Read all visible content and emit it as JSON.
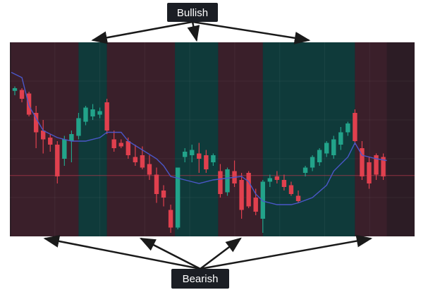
{
  "chart_data": {
    "type": "candlestick",
    "title": "",
    "xlabel": "",
    "ylabel": "",
    "grid": true,
    "ylim": [
      0,
      100
    ],
    "colors": {
      "bullish_zone": "#0f3a3a",
      "bearish_zone": "#3a1f2a",
      "up_candle": "#22a38a",
      "down_candle": "#e0404e",
      "moving_average": "#4a57c8",
      "reference_line": "#b83a4e",
      "annotation_box": "#1b1e24",
      "arrow": "#1a1a1a"
    },
    "zones": [
      {
        "regime": "bearish",
        "x_start": -0.5,
        "x_end": 9
      },
      {
        "regime": "bullish",
        "x_start": 9,
        "x_end": 13
      },
      {
        "regime": "bearish",
        "x_start": 13,
        "x_end": 22.6
      },
      {
        "regime": "bullish",
        "x_start": 22.6,
        "x_end": 28.7
      },
      {
        "regime": "bearish",
        "x_start": 28.7,
        "x_end": 35
      },
      {
        "regime": "bullish",
        "x_start": 35,
        "x_end": 48
      },
      {
        "regime": "bearish",
        "x_start": 48,
        "x_end": 52.5
      }
    ],
    "reference_line_y": 32.5,
    "annotations": [
      {
        "text": "Bullish",
        "points_to_zones": [
          1,
          3,
          5
        ]
      },
      {
        "text": "Bearish",
        "points_to_zones": [
          0,
          2,
          4,
          6
        ]
      }
    ],
    "candles": [
      {
        "x": 0,
        "open": 80.5,
        "high": 83,
        "low": 78,
        "close": 82
      },
      {
        "x": 1,
        "open": 81,
        "high": 82,
        "low": 74,
        "close": 76
      },
      {
        "x": 2,
        "open": 79,
        "high": 80,
        "low": 66,
        "close": 67
      },
      {
        "x": 3,
        "open": 68,
        "high": 72,
        "low": 48,
        "close": 57
      },
      {
        "x": 4,
        "open": 58,
        "high": 64,
        "low": 45,
        "close": 53
      },
      {
        "x": 5,
        "open": 54,
        "high": 56,
        "low": 46,
        "close": 50
      },
      {
        "x": 6,
        "open": 50,
        "high": 52,
        "low": 28,
        "close": 32
      },
      {
        "x": 7,
        "open": 42,
        "high": 55,
        "low": 38,
        "close": 53
      },
      {
        "x": 8,
        "open": 52,
        "high": 58,
        "low": 40,
        "close": 56
      },
      {
        "x": 9,
        "open": 55,
        "high": 68,
        "low": 53,
        "close": 65
      },
      {
        "x": 10,
        "open": 63,
        "high": 72,
        "low": 61,
        "close": 71
      },
      {
        "x": 11,
        "open": 66,
        "high": 73,
        "low": 64,
        "close": 70
      },
      {
        "x": 12,
        "open": 67,
        "high": 71,
        "low": 65,
        "close": 69
      },
      {
        "x": 13,
        "open": 74,
        "high": 76,
        "low": 56,
        "close": 58
      },
      {
        "x": 14,
        "open": 53,
        "high": 58,
        "low": 46,
        "close": 48
      },
      {
        "x": 15,
        "open": 51,
        "high": 53,
        "low": 48,
        "close": 49
      },
      {
        "x": 16,
        "open": 52,
        "high": 54,
        "low": 42,
        "close": 44
      },
      {
        "x": 17,
        "open": 43,
        "high": 50,
        "low": 38,
        "close": 40
      },
      {
        "x": 18,
        "open": 44,
        "high": 49,
        "low": 36,
        "close": 37
      },
      {
        "x": 19,
        "open": 39,
        "high": 44,
        "low": 30,
        "close": 33
      },
      {
        "x": 20,
        "open": 33,
        "high": 37,
        "low": 17,
        "close": 22
      },
      {
        "x": 21,
        "open": 24,
        "high": 27,
        "low": 15,
        "close": 20
      },
      {
        "x": 22,
        "open": 13,
        "high": 16,
        "low": 0,
        "close": 3
      },
      {
        "x": 23,
        "open": 3,
        "high": 37,
        "low": 2,
        "close": 37
      },
      {
        "x": 24,
        "open": 43,
        "high": 48,
        "low": 40,
        "close": 46
      },
      {
        "x": 25,
        "open": 44,
        "high": 50,
        "low": 40,
        "close": 47
      },
      {
        "x": 26,
        "open": 45,
        "high": 51,
        "low": 34,
        "close": 42
      },
      {
        "x": 27,
        "open": 44,
        "high": 47,
        "low": 34,
        "close": 36
      },
      {
        "x": 28,
        "open": 40,
        "high": 45,
        "low": 38,
        "close": 44
      },
      {
        "x": 29,
        "open": 35,
        "high": 39,
        "low": 20,
        "close": 22
      },
      {
        "x": 30,
        "open": 23,
        "high": 37,
        "low": 21,
        "close": 36
      },
      {
        "x": 31,
        "open": 35,
        "high": 41,
        "low": 26,
        "close": 28
      },
      {
        "x": 32,
        "open": 30,
        "high": 34,
        "low": 8,
        "close": 13
      },
      {
        "x": 33,
        "open": 34,
        "high": 35,
        "low": 14,
        "close": 15
      },
      {
        "x": 34,
        "open": 20,
        "high": 25,
        "low": 10,
        "close": 12
      },
      {
        "x": 35,
        "open": 8,
        "high": 30,
        "low": 0,
        "close": 29
      },
      {
        "x": 36,
        "open": 29,
        "high": 33,
        "low": 26,
        "close": 31
      },
      {
        "x": 37,
        "open": 32,
        "high": 35,
        "low": 28,
        "close": 30
      },
      {
        "x": 38,
        "open": 30,
        "high": 33,
        "low": 24,
        "close": 26
      },
      {
        "x": 39,
        "open": 27,
        "high": 29,
        "low": 21,
        "close": 22
      },
      {
        "x": 40,
        "open": 21,
        "high": 24,
        "low": 17,
        "close": 18
      },
      {
        "x": 41,
        "open": 34,
        "high": 38,
        "low": 32,
        "close": 37
      },
      {
        "x": 42,
        "open": 37,
        "high": 44,
        "low": 35,
        "close": 43
      },
      {
        "x": 43,
        "open": 40,
        "high": 48,
        "low": 38,
        "close": 47
      },
      {
        "x": 44,
        "open": 45,
        "high": 52,
        "low": 43,
        "close": 51
      },
      {
        "x": 45,
        "open": 44,
        "high": 55,
        "low": 42,
        "close": 53
      },
      {
        "x": 46,
        "open": 50,
        "high": 60,
        "low": 47,
        "close": 57
      },
      {
        "x": 47,
        "open": 57,
        "high": 63,
        "low": 55,
        "close": 62
      },
      {
        "x": 48,
        "open": 68,
        "high": 70,
        "low": 50,
        "close": 52
      },
      {
        "x": 49,
        "open": 48,
        "high": 52,
        "low": 30,
        "close": 32
      },
      {
        "x": 50,
        "open": 40,
        "high": 43,
        "low": 25,
        "close": 28
      },
      {
        "x": 51,
        "open": 44,
        "high": 45,
        "low": 30,
        "close": 33
      },
      {
        "x": 52,
        "open": 43,
        "high": 45,
        "low": 30,
        "close": 32
      }
    ],
    "moving_average": [
      [
        -0.5,
        91
      ],
      [
        1,
        88
      ],
      [
        2,
        72
      ],
      [
        4,
        58
      ],
      [
        6,
        54
      ],
      [
        8,
        52
      ],
      [
        10,
        52
      ],
      [
        12,
        54
      ],
      [
        13,
        57
      ],
      [
        15,
        57
      ],
      [
        16,
        52
      ],
      [
        18,
        47
      ],
      [
        20,
        42
      ],
      [
        21,
        38
      ],
      [
        22,
        32
      ],
      [
        24,
        30
      ],
      [
        26,
        28
      ],
      [
        28,
        30
      ],
      [
        30,
        31
      ],
      [
        32,
        32
      ],
      [
        33,
        29
      ],
      [
        34,
        22
      ],
      [
        35,
        18
      ],
      [
        37,
        16
      ],
      [
        39,
        16
      ],
      [
        40,
        17
      ],
      [
        42,
        20
      ],
      [
        44,
        27
      ],
      [
        45,
        35
      ],
      [
        46,
        39
      ],
      [
        47,
        43
      ],
      [
        48,
        51
      ],
      [
        49,
        44
      ],
      [
        51,
        42
      ],
      [
        52.5,
        41
      ]
    ]
  }
}
